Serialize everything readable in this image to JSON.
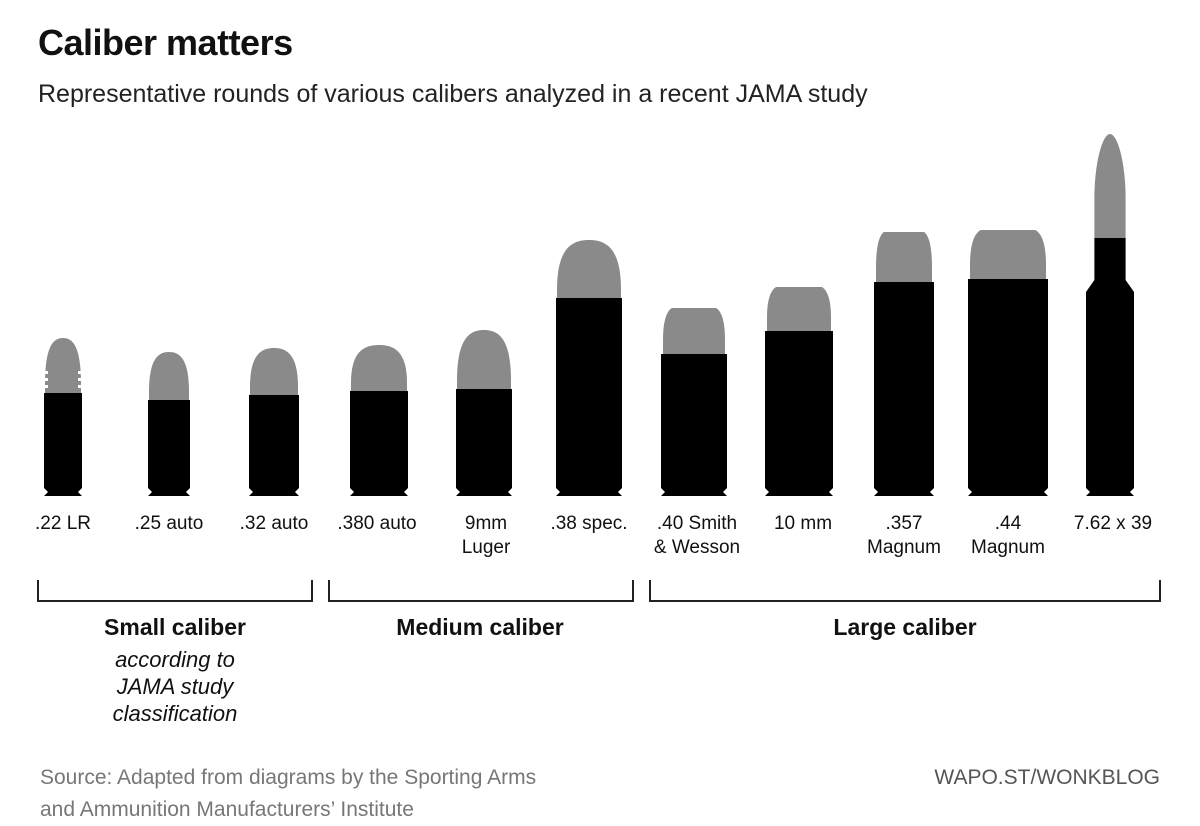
{
  "title": "Caliber matters",
  "subtitle": "Representative rounds of various calibers analyzed in a recent JAMA study",
  "colors": {
    "case": "#000000",
    "bullet": "#8a8a8a",
    "text": "#111111",
    "source": "#777777"
  },
  "rounds": [
    {
      "label_lines": [
        ".22 LR"
      ],
      "group": "Small caliber"
    },
    {
      "label_lines": [
        ".25 auto"
      ],
      "group": "Small caliber"
    },
    {
      "label_lines": [
        ".32 auto"
      ],
      "group": "Small caliber"
    },
    {
      "label_lines": [
        ".380 auto"
      ],
      "group": "Medium caliber"
    },
    {
      "label_lines": [
        "9mm",
        "Luger"
      ],
      "group": "Medium caliber"
    },
    {
      "label_lines": [
        ".38 spec."
      ],
      "group": "Medium caliber"
    },
    {
      "label_lines": [
        ".40 Smith",
        "& Wesson"
      ],
      "group": "Large caliber"
    },
    {
      "label_lines": [
        "10 mm"
      ],
      "group": "Large caliber"
    },
    {
      "label_lines": [
        ".357",
        "Magnum"
      ],
      "group": "Large caliber"
    },
    {
      "label_lines": [
        ".44",
        "Magnum"
      ],
      "group": "Large caliber"
    },
    {
      "label_lines": [
        "7.62 x 39"
      ],
      "group": "Large caliber"
    }
  ],
  "groups": {
    "small": {
      "title": "Small caliber",
      "note_lines": [
        "according to",
        "JAMA study",
        "classification"
      ]
    },
    "medium": {
      "title": "Medium caliber"
    },
    "large": {
      "title": "Large caliber"
    }
  },
  "source_lines": [
    "Source: Adapted from diagrams by the Sporting Arms",
    "and Ammunition Manufacturers’ Institute"
  ],
  "credit": "WAPO.ST/WONKBLOG"
}
